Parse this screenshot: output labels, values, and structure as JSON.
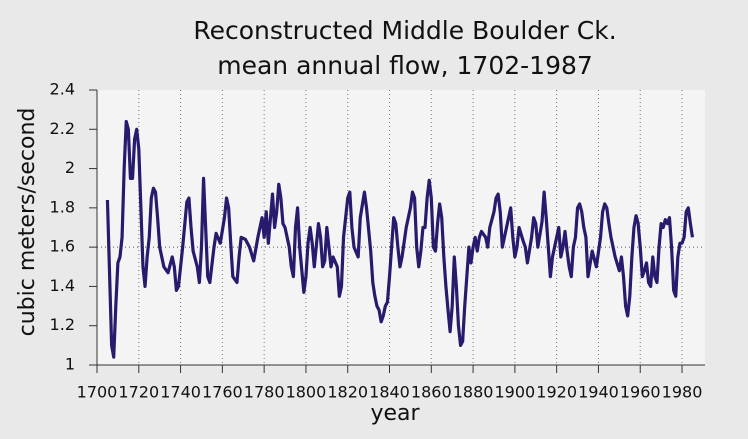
{
  "chart_data": {
    "type": "line",
    "title": [
      "Reconstructed Middle Boulder Ck.",
      "mean annual flow, 1702-1987"
    ],
    "xlabel": "year",
    "ylabel": "cubic meters/second",
    "xlim": [
      1700,
      1991
    ],
    "ylim": [
      1,
      2.4
    ],
    "xticks": [
      1700,
      1720,
      1740,
      1760,
      1780,
      1800,
      1820,
      1840,
      1860,
      1880,
      1900,
      1920,
      1940,
      1960,
      1980
    ],
    "yticks": [
      1,
      1.2,
      1.4,
      1.6,
      1.8,
      2,
      2.2,
      2.4
    ],
    "grid": "x",
    "reference_line": 1.6,
    "series": [
      {
        "color": "#281a6c",
        "x": [
          1705,
          1707,
          1708,
          1709,
          1710,
          1711,
          1712,
          1713,
          1714,
          1715,
          1716,
          1717,
          1718,
          1719,
          1720,
          1721,
          1722,
          1723,
          1724,
          1725,
          1726,
          1727,
          1728,
          1729,
          1730,
          1732,
          1734,
          1736,
          1737,
          1738,
          1739,
          1741,
          1743,
          1744,
          1745,
          1746,
          1748,
          1749,
          1750,
          1751,
          1752,
          1753,
          1754,
          1756,
          1757,
          1759,
          1761,
          1762,
          1763,
          1764,
          1765,
          1767,
          1768,
          1769,
          1771,
          1773,
          1775,
          1777,
          1778,
          1779,
          1780,
          1781,
          1782,
          1784,
          1785,
          1786,
          1787,
          1788,
          1789,
          1790,
          1792,
          1793,
          1794,
          1795,
          1796,
          1797,
          1799,
          1800,
          1801,
          1802,
          1803,
          1804,
          1806,
          1807,
          1808,
          1809,
          1810,
          1811,
          1812,
          1813,
          1815,
          1816,
          1817,
          1818,
          1820,
          1821,
          1822,
          1823,
          1825,
          1826,
          1828,
          1829,
          1831,
          1832,
          1833,
          1834,
          1835,
          1836,
          1837,
          1838,
          1839,
          1840,
          1841,
          1842,
          1843,
          1844,
          1845,
          1846,
          1848,
          1850,
          1851,
          1852,
          1853,
          1854,
          1855,
          1856,
          1857,
          1858,
          1859,
          1860,
          1861,
          1862,
          1863,
          1864,
          1865,
          1866,
          1867,
          1868,
          1869,
          1870,
          1871,
          1872,
          1873,
          1874,
          1875,
          1876,
          1877,
          1878,
          1879,
          1880,
          1881,
          1882,
          1883,
          1884,
          1886,
          1887,
          1888,
          1890,
          1891,
          1892,
          1893,
          1894,
          1895,
          1897,
          1898,
          1899,
          1900,
          1901,
          1902,
          1904,
          1905,
          1906,
          1908,
          1909,
          1910,
          1911,
          1913,
          1914,
          1915,
          1916,
          1917,
          1918,
          1919,
          1920,
          1921,
          1922,
          1923,
          1924,
          1925,
          1926,
          1927,
          1928,
          1929,
          1930,
          1931,
          1932,
          1933,
          1934,
          1935,
          1937,
          1939,
          1941,
          1942,
          1943,
          1944,
          1945,
          1946,
          1947,
          1948,
          1950,
          1951,
          1952,
          1953,
          1954,
          1955,
          1956,
          1957,
          1958,
          1959,
          1960,
          1961,
          1962,
          1963,
          1964,
          1965,
          1966,
          1967,
          1968,
          1969,
          1970,
          1971,
          1972,
          1973,
          1974,
          1975,
          1976,
          1977,
          1978,
          1979,
          1980,
          1981,
          1982,
          1983,
          1984,
          1985
        ],
        "values": [
          1.84,
          1.1,
          1.04,
          1.3,
          1.52,
          1.55,
          1.65,
          2.0,
          2.24,
          2.2,
          1.95,
          1.95,
          2.15,
          2.2,
          2.1,
          1.8,
          1.5,
          1.4,
          1.55,
          1.65,
          1.85,
          1.9,
          1.88,
          1.75,
          1.6,
          1.5,
          1.47,
          1.55,
          1.5,
          1.38,
          1.4,
          1.6,
          1.83,
          1.85,
          1.7,
          1.58,
          1.5,
          1.42,
          1.6,
          1.95,
          1.7,
          1.45,
          1.42,
          1.6,
          1.67,
          1.62,
          1.75,
          1.85,
          1.8,
          1.62,
          1.45,
          1.42,
          1.55,
          1.65,
          1.64,
          1.6,
          1.53,
          1.65,
          1.7,
          1.75,
          1.65,
          1.78,
          1.62,
          1.87,
          1.7,
          1.78,
          1.92,
          1.85,
          1.72,
          1.7,
          1.6,
          1.5,
          1.45,
          1.7,
          1.8,
          1.6,
          1.37,
          1.45,
          1.62,
          1.7,
          1.62,
          1.5,
          1.72,
          1.65,
          1.5,
          1.53,
          1.7,
          1.6,
          1.5,
          1.55,
          1.5,
          1.35,
          1.4,
          1.65,
          1.85,
          1.88,
          1.7,
          1.6,
          1.55,
          1.75,
          1.88,
          1.8,
          1.58,
          1.42,
          1.35,
          1.3,
          1.28,
          1.22,
          1.25,
          1.3,
          1.32,
          1.45,
          1.6,
          1.75,
          1.72,
          1.6,
          1.5,
          1.55,
          1.7,
          1.8,
          1.88,
          1.85,
          1.6,
          1.5,
          1.58,
          1.7,
          1.7,
          1.85,
          1.94,
          1.85,
          1.6,
          1.58,
          1.72,
          1.82,
          1.75,
          1.55,
          1.4,
          1.28,
          1.17,
          1.3,
          1.55,
          1.4,
          1.2,
          1.1,
          1.12,
          1.3,
          1.45,
          1.6,
          1.52,
          1.6,
          1.65,
          1.58,
          1.65,
          1.68,
          1.65,
          1.6,
          1.7,
          1.78,
          1.85,
          1.87,
          1.78,
          1.6,
          1.65,
          1.75,
          1.8,
          1.65,
          1.55,
          1.6,
          1.7,
          1.63,
          1.6,
          1.52,
          1.65,
          1.75,
          1.72,
          1.6,
          1.73,
          1.88,
          1.75,
          1.6,
          1.45,
          1.55,
          1.6,
          1.65,
          1.7,
          1.55,
          1.6,
          1.68,
          1.58,
          1.5,
          1.45,
          1.6,
          1.65,
          1.8,
          1.82,
          1.78,
          1.7,
          1.65,
          1.45,
          1.58,
          1.5,
          1.65,
          1.78,
          1.82,
          1.8,
          1.72,
          1.65,
          1.6,
          1.55,
          1.48,
          1.55,
          1.45,
          1.3,
          1.25,
          1.35,
          1.55,
          1.7,
          1.76,
          1.72,
          1.6,
          1.45,
          1.48,
          1.52,
          1.42,
          1.4,
          1.55,
          1.45,
          1.42,
          1.6,
          1.72,
          1.7,
          1.74,
          1.72,
          1.75,
          1.6,
          1.38,
          1.35,
          1.55,
          1.62,
          1.62,
          1.65,
          1.78,
          1.8,
          1.72,
          1.65
        ]
      }
    ]
  }
}
